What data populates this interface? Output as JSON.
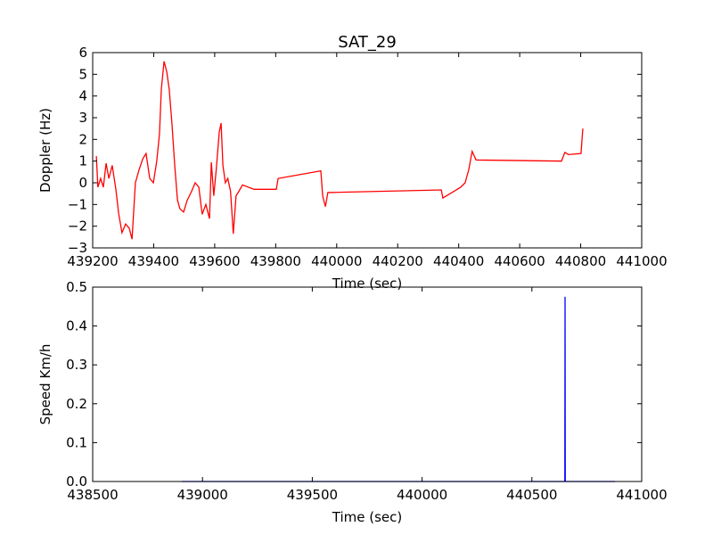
{
  "chart_data": [
    {
      "type": "line",
      "title": "SAT_29",
      "xlabel": "Time (sec)",
      "ylabel": "Doppler (Hz)",
      "color": "#ff0000",
      "x": [
        439212,
        439217,
        439226,
        439235,
        439244,
        439253,
        439264,
        439276,
        439285,
        439296,
        439308,
        439320,
        439329,
        439340,
        439352,
        439364,
        439375,
        439387,
        439399,
        439410,
        439419,
        439425,
        439434,
        439443,
        439451,
        439460,
        439469,
        439478,
        439486,
        439498,
        439510,
        439524,
        439536,
        439548,
        439559,
        439571,
        439583,
        439589,
        439597,
        439605,
        439615,
        439621,
        439627,
        439635,
        439643,
        439652,
        439661,
        439670,
        439679,
        439691,
        439729,
        439802,
        439808,
        439948,
        439954,
        439963,
        439971,
        440343,
        440348,
        440407,
        440421,
        440433,
        440444,
        440457,
        440737,
        440748,
        440760,
        440801,
        440807
      ],
      "values": [
        1.23,
        -0.2,
        0.2,
        -0.2,
        0.9,
        0.2,
        0.8,
        -0.3,
        -1.4,
        -2.3,
        -1.9,
        -2.1,
        -2.6,
        0.0,
        0.6,
        1.1,
        1.35,
        0.2,
        0.0,
        1.0,
        2.25,
        4.3,
        5.6,
        5.1,
        4.3,
        2.7,
        0.8,
        -0.8,
        -1.2,
        -1.35,
        -0.8,
        -0.4,
        0.0,
        -0.2,
        -1.45,
        -1.0,
        -1.65,
        0.95,
        -0.6,
        0.6,
        2.35,
        2.75,
        0.8,
        0.0,
        0.2,
        -0.4,
        -2.35,
        -0.6,
        -0.4,
        -0.1,
        -0.3,
        -0.3,
        0.2,
        0.55,
        -0.6,
        -1.1,
        -0.45,
        -0.33,
        -0.7,
        -0.2,
        0.0,
        0.6,
        1.45,
        1.05,
        1.0,
        1.4,
        1.3,
        1.35,
        2.5
      ],
      "xlim": [
        439200,
        441000
      ],
      "xticks": [
        439200,
        439400,
        439600,
        439800,
        440000,
        440200,
        440400,
        440600,
        440800,
        441000
      ],
      "ylim": [
        -3,
        6
      ],
      "yticks": [
        {
          "value": -3,
          "label": "−3"
        },
        {
          "value": -2,
          "label": "−2"
        },
        {
          "value": -1,
          "label": "−1"
        },
        0,
        1,
        2,
        3,
        4,
        5,
        6
      ]
    },
    {
      "type": "line",
      "xlabel": "Time (sec)",
      "ylabel": "Speed Km/h",
      "color": "#0000ff",
      "x": [
        438906,
        440650,
        440651,
        440652,
        440878
      ],
      "values": [
        0,
        0,
        0.475,
        0,
        0
      ],
      "xlim": [
        438500,
        441000
      ],
      "xticks": [
        438500,
        439000,
        439500,
        440000,
        440500,
        441000
      ],
      "ylim": [
        0,
        0.5
      ],
      "yticks": [
        {
          "value": 0,
          "label": "0.0"
        },
        0.1,
        0.2,
        0.3,
        0.4,
        0.5
      ]
    }
  ]
}
